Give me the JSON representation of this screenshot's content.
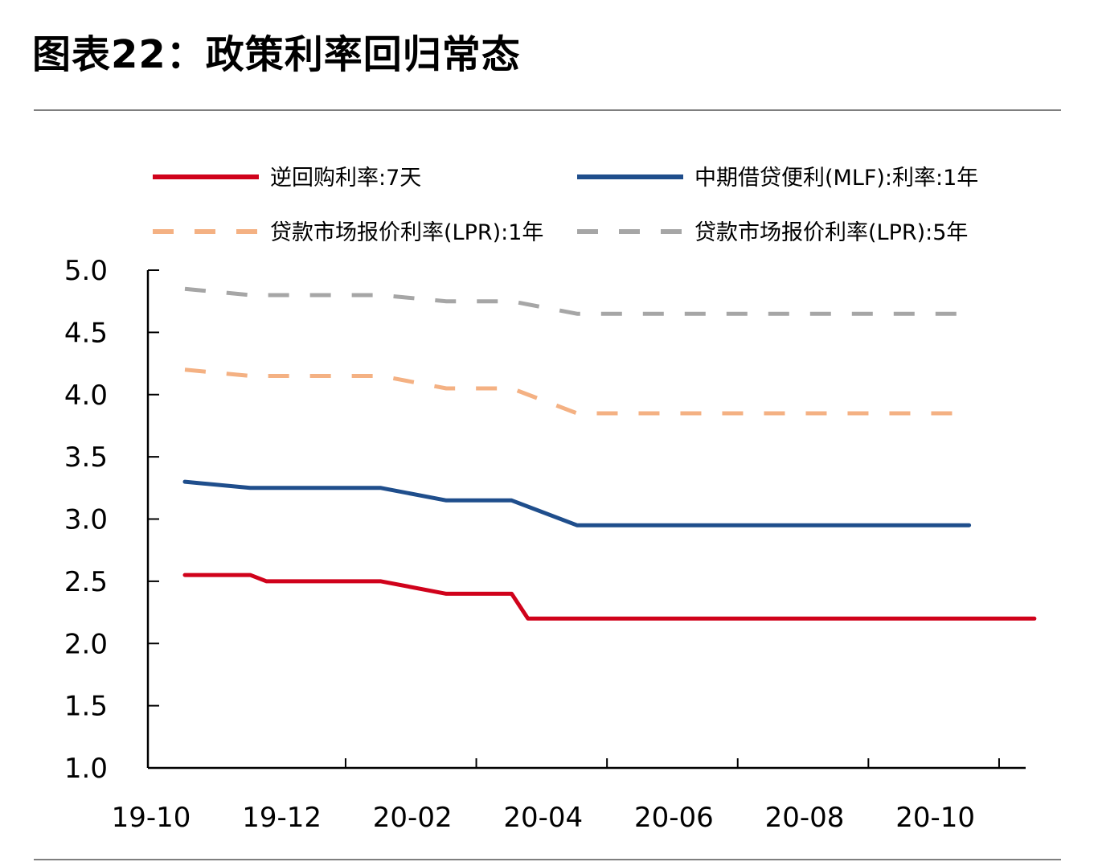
{
  "figure": {
    "title": "图表22：政策利率回归常态"
  },
  "chart_data": {
    "type": "line",
    "x": [
      "19-10",
      "19-11",
      "19-12",
      "20-01",
      "20-02",
      "20-03",
      "20-04",
      "20-05",
      "20-06",
      "20-07",
      "20-08",
      "20-09",
      "20-10",
      "20-11"
    ],
    "x_ticks": [
      "19-10",
      "19-12",
      "20-02",
      "20-04",
      "20-06",
      "20-08",
      "20-10"
    ],
    "ylim": [
      1.0,
      5.0
    ],
    "y_ticks": [
      "5.0",
      "4.5",
      "4.0",
      "3.5",
      "3.0",
      "2.5",
      "2.0",
      "1.5",
      "1.0"
    ],
    "grid": false,
    "legend_position": "top",
    "series": [
      {
        "name": "逆回购利率:7天",
        "color": "#d0021b",
        "dash": false,
        "points": [
          {
            "x": "19-10",
            "y": 2.55
          },
          {
            "x": "19-11",
            "y": 2.55
          },
          {
            "x": "19-11",
            "y": 2.5
          },
          {
            "x": "19-12",
            "y": 2.5
          },
          {
            "x": "20-01",
            "y": 2.5
          },
          {
            "x": "20-02",
            "y": 2.4
          },
          {
            "x": "20-03",
            "y": 2.4
          },
          {
            "x": "20-03",
            "y": 2.2
          },
          {
            "x": "20-11",
            "y": 2.2
          }
        ]
      },
      {
        "name": "中期借贷便利(MLF):利率:1年",
        "color": "#1f4e8c",
        "dash": false,
        "points": [
          {
            "x": "19-10",
            "y": 3.3
          },
          {
            "x": "19-11",
            "y": 3.25
          },
          {
            "x": "20-01",
            "y": 3.25
          },
          {
            "x": "20-02",
            "y": 3.15
          },
          {
            "x": "20-03",
            "y": 3.15
          },
          {
            "x": "20-04",
            "y": 2.95
          },
          {
            "x": "20-10",
            "y": 2.95
          }
        ]
      },
      {
        "name": "贷款市场报价利率(LPR):1年",
        "color": "#f4b183",
        "dash": true,
        "points": [
          {
            "x": "19-10",
            "y": 4.2
          },
          {
            "x": "19-11",
            "y": 4.15
          },
          {
            "x": "20-01",
            "y": 4.15
          },
          {
            "x": "20-02",
            "y": 4.05
          },
          {
            "x": "20-03",
            "y": 4.05
          },
          {
            "x": "20-04",
            "y": 3.85
          },
          {
            "x": "20-10",
            "y": 3.85
          }
        ]
      },
      {
        "name": "贷款市场报价利率(LPR):5年",
        "color": "#a6a6a6",
        "dash": true,
        "points": [
          {
            "x": "19-10",
            "y": 4.85
          },
          {
            "x": "19-11",
            "y": 4.8
          },
          {
            "x": "20-01",
            "y": 4.8
          },
          {
            "x": "20-02",
            "y": 4.75
          },
          {
            "x": "20-03",
            "y": 4.75
          },
          {
            "x": "20-04",
            "y": 4.65
          },
          {
            "x": "20-10",
            "y": 4.65
          }
        ]
      }
    ]
  }
}
